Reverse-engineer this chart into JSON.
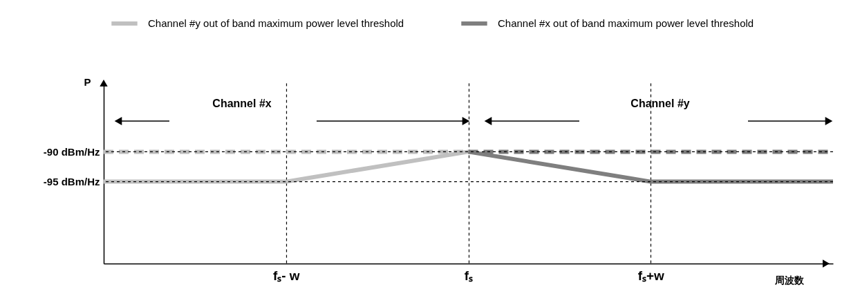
{
  "chart_data": {
    "type": "line",
    "xlabel": "周波数",
    "ylabel": "P",
    "categories": [
      null,
      "fₛ- w",
      "fₛ",
      "fₛ+w",
      null
    ],
    "ylim": [
      -108.7,
      -78.5
    ],
    "yticks": [
      {
        "value": -95,
        "label": "-95 dBm/Hz"
      },
      {
        "value": -90,
        "label": "-90 dBm/Hz"
      }
    ],
    "series": [
      {
        "name": "Channel #y out of band maximum power level threshold",
        "color": "#c0c0c0",
        "values": [
          -95,
          -95,
          -90,
          null,
          null
        ],
        "line_style": "solid"
      },
      {
        "name": "Channel #x out of band maximum power level threshold",
        "color": "#7f7f7f",
        "values": [
          null,
          null,
          -90,
          -95,
          -95
        ],
        "line_style": "solid"
      },
      {
        "color": "#bdbdbd",
        "values": [
          -90,
          -90,
          -90,
          null,
          null
        ],
        "line_style": "dashed"
      },
      {
        "color": "#7b7b7b",
        "values": [
          null,
          null,
          -90,
          -90,
          -90
        ],
        "line_style": "dashed"
      }
    ],
    "ref_lines": [
      {
        "axis": "y",
        "value": -90,
        "color": "#000000",
        "line_style": "dashed"
      },
      {
        "axis": "y",
        "value": -95,
        "color": "#000000",
        "line_style": "dashed"
      }
    ],
    "annotations": [
      "Channel #x",
      "Channel #y"
    ],
    "legend": "top",
    "grid": "x",
    "marker": "none"
  }
}
